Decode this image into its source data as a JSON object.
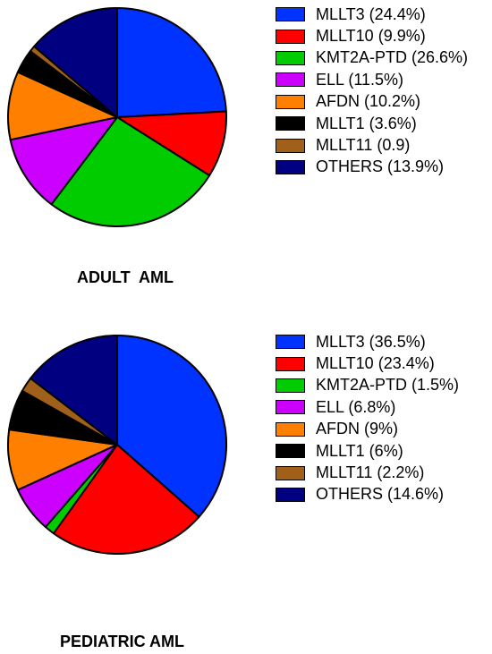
{
  "chart_data": [
    {
      "type": "pie",
      "title": "ADULT  AML",
      "slices": [
        {
          "label": "MLLT3 (24.4%)",
          "value": 24.4,
          "color": "#0033ff"
        },
        {
          "label": "MLLT10 (9.9%)",
          "value": 9.9,
          "color": "#ff0000"
        },
        {
          "label": "KMT2A-PTD (26.6%)",
          "value": 26.6,
          "color": "#00cc00"
        },
        {
          "label": "ELL (11.5%)",
          "value": 11.5,
          "color": "#cc00ff"
        },
        {
          "label": "AFDN (10.2%)",
          "value": 10.2,
          "color": "#ff8000"
        },
        {
          "label": "MLLT1 (3.6%)",
          "value": 3.6,
          "color": "#000000"
        },
        {
          "label": "MLLT11 (0.9)",
          "value": 0.9,
          "color": "#a0601a"
        },
        {
          "label": "OTHERS (13.9%)",
          "value": 13.9,
          "color": "#000080"
        }
      ],
      "legend_position": "right"
    },
    {
      "type": "pie",
      "title": "PEDIATRIC AML",
      "slices": [
        {
          "label": "MLLT3 (36.5%)",
          "value": 36.5,
          "color": "#0033ff"
        },
        {
          "label": "MLLT10 (23.4%)",
          "value": 23.4,
          "color": "#ff0000"
        },
        {
          "label": "KMT2A-PTD (1.5%)",
          "value": 1.5,
          "color": "#00cc00"
        },
        {
          "label": "ELL (6.8%)",
          "value": 6.8,
          "color": "#cc00ff"
        },
        {
          "label": "AFDN (9%)",
          "value": 9,
          "color": "#ff8000"
        },
        {
          "label": "MLLT1 (6%)",
          "value": 6,
          "color": "#000000"
        },
        {
          "label": "MLLT11 (2.2%)",
          "value": 2.2,
          "color": "#a0601a"
        },
        {
          "label": "OTHERS (14.6%)",
          "value": 14.6,
          "color": "#000080"
        }
      ],
      "legend_position": "right"
    }
  ]
}
